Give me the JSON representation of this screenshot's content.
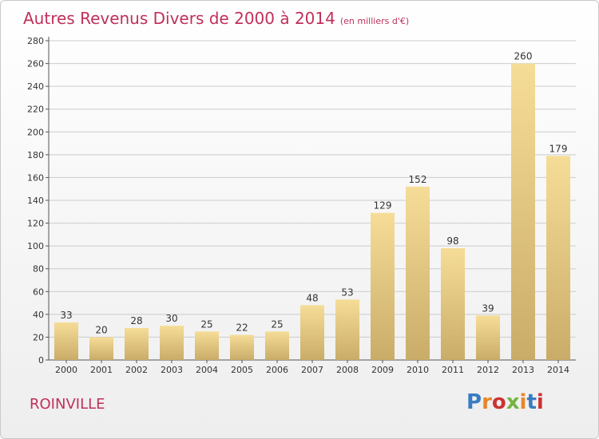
{
  "title": "Autres Revenus Divers de 2000 à 2014",
  "subtitle": "(en milliers d'€)",
  "place": "ROINVILLE",
  "logo": {
    "text": "Proxiti",
    "colors": [
      "#3a7cc2",
      "#e8862a",
      "#cc3333",
      "#74b442",
      "#e8862a",
      "#3a7cc2",
      "#cc3333"
    ]
  },
  "colors": {
    "title": "#c0305a",
    "bar_light": "#f6dd97",
    "bar_dark": "#c9ac68",
    "grid": "#cccccc"
  },
  "chart_data": {
    "type": "bar",
    "categories": [
      "2000",
      "2001",
      "2002",
      "2003",
      "2004",
      "2005",
      "2006",
      "2007",
      "2008",
      "2009",
      "2010",
      "2011",
      "2012",
      "2013",
      "2014"
    ],
    "values": [
      33,
      20,
      28,
      30,
      25,
      22,
      25,
      48,
      53,
      129,
      152,
      98,
      39,
      260,
      179
    ],
    "ylim": [
      0,
      280
    ],
    "yticks": [
      0,
      20,
      40,
      60,
      80,
      100,
      120,
      140,
      160,
      180,
      200,
      220,
      240,
      260,
      280
    ],
    "grid": true,
    "xlabel": "",
    "ylabel": ""
  }
}
